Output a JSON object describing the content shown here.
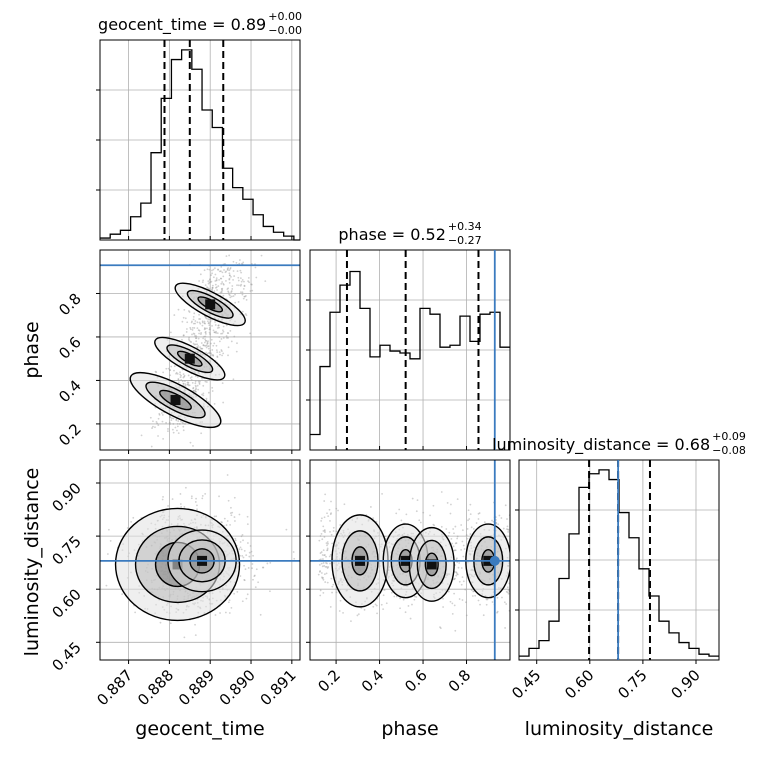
{
  "chart_data": {
    "type": "corner",
    "parameters": [
      "geocent_time",
      "phase",
      "luminosity_distance"
    ],
    "colors": {
      "truth": "#3b7bbf",
      "hist": "#000000",
      "grid": "#b0b0b0",
      "scatter": "#9a9a9a"
    },
    "diagonal": [
      {
        "parameter": "geocent_time",
        "title": {
          "prefix": "geocent_time = 0.89",
          "plus": "+0.00",
          "minus": "−0.00"
        },
        "xlim": [
          0.8863,
          0.8912
        ],
        "quantiles": [
          0.88788,
          0.8885,
          0.88932
        ],
        "truth": null,
        "bins": [
          0.8863,
          0.88655,
          0.8868,
          0.88705,
          0.8873,
          0.88755,
          0.8878,
          0.88805,
          0.8883,
          0.88855,
          0.8888,
          0.88905,
          0.8893,
          0.88955,
          0.8898,
          0.89005,
          0.8903,
          0.89055,
          0.8908,
          0.89105,
          0.8912
        ],
        "counts": [
          0.01,
          0.03,
          0.05,
          0.12,
          0.19,
          0.45,
          0.73,
          0.93,
          0.98,
          0.88,
          0.67,
          0.58,
          0.37,
          0.27,
          0.21,
          0.13,
          0.07,
          0.04,
          0.02,
          0.0
        ]
      },
      {
        "parameter": "phase",
        "title": {
          "prefix": "phase = 0.52",
          "plus": "+0.34",
          "minus": "−0.27"
        },
        "xlim": [
          0.08,
          1.0
        ],
        "quantiles": [
          0.25,
          0.52,
          0.855
        ],
        "truth": 0.93,
        "bins": [
          0.08,
          0.126,
          0.172,
          0.218,
          0.264,
          0.31,
          0.356,
          0.402,
          0.448,
          0.494,
          0.54,
          0.586,
          0.632,
          0.678,
          0.724,
          0.77,
          0.816,
          0.862,
          0.908,
          0.954,
          1.0
        ],
        "counts": [
          0.08,
          0.43,
          0.71,
          0.85,
          0.92,
          0.73,
          0.48,
          0.54,
          0.51,
          0.5,
          0.47,
          0.73,
          0.7,
          0.53,
          0.54,
          0.69,
          0.56,
          0.7,
          0.71,
          0.53
        ]
      },
      {
        "parameter": "luminosity_distance",
        "title": {
          "prefix": "luminosity_distance = 0.68",
          "plus": "+0.09",
          "minus": "−0.08"
        },
        "xlim": [
          0.4,
          0.965
        ],
        "quantiles": [
          0.598,
          0.68,
          0.77
        ],
        "truth": 0.68,
        "bins": [
          0.4,
          0.42825,
          0.4565,
          0.48475,
          0.513,
          0.54125,
          0.5695,
          0.59775,
          0.626,
          0.65425,
          0.6825,
          0.71075,
          0.739,
          0.76725,
          0.7955,
          0.82375,
          0.852,
          0.88025,
          0.9085,
          0.93675,
          0.965
        ],
        "counts": [
          0.02,
          0.06,
          0.1,
          0.2,
          0.42,
          0.65,
          0.89,
          0.96,
          0.98,
          0.93,
          0.76,
          0.63,
          0.47,
          0.33,
          0.2,
          0.14,
          0.09,
          0.06,
          0.03,
          0.02
        ]
      }
    ],
    "panels_2d": [
      {
        "x": "geocent_time",
        "y": "phase",
        "ylim": [
          0.08,
          1.0
        ],
        "truth_y": 0.93,
        "posterior_peaks": [
          [
            0.88815,
            0.31
          ],
          [
            0.8885,
            0.5
          ],
          [
            0.889,
            0.75
          ]
        ]
      },
      {
        "x": "geocent_time",
        "y": "luminosity_distance",
        "ylim": [
          0.4,
          0.965
        ],
        "truth_y": 0.68,
        "posterior_peaks": [
          [
            0.8882,
            0.67
          ],
          [
            0.8888,
            0.68
          ]
        ]
      },
      {
        "x": "phase",
        "y": "luminosity_distance",
        "truth_x": 0.93,
        "truth_y": 0.68,
        "posterior_peaks": [
          [
            0.31,
            0.68
          ],
          [
            0.52,
            0.68
          ],
          [
            0.64,
            0.67
          ],
          [
            0.9,
            0.68
          ]
        ]
      }
    ],
    "axes": {
      "geocent_time": {
        "label": "geocent_time",
        "ticks": [
          0.887,
          0.888,
          0.889,
          0.89,
          0.891
        ],
        "tick_labels": [
          "0.887",
          "0.888",
          "0.889",
          "0.890",
          "0.891"
        ]
      },
      "phase": {
        "label": "phase",
        "x_ticks": [
          0.2,
          0.4,
          0.6,
          0.8
        ],
        "x_tick_labels": [
          "0.2",
          "0.4",
          "0.6",
          "0.8"
        ],
        "y_ticks": [
          0.2,
          0.4,
          0.6,
          0.8
        ],
        "y_tick_labels": [
          "0.2",
          "0.4",
          "0.6",
          "0.8"
        ]
      },
      "luminosity_distance": {
        "label": "luminosity_distance",
        "ticks": [
          0.45,
          0.6,
          0.75,
          0.9
        ],
        "tick_labels": [
          "0.45",
          "0.60",
          "0.75",
          "0.90"
        ]
      }
    },
    "grid": true
  }
}
